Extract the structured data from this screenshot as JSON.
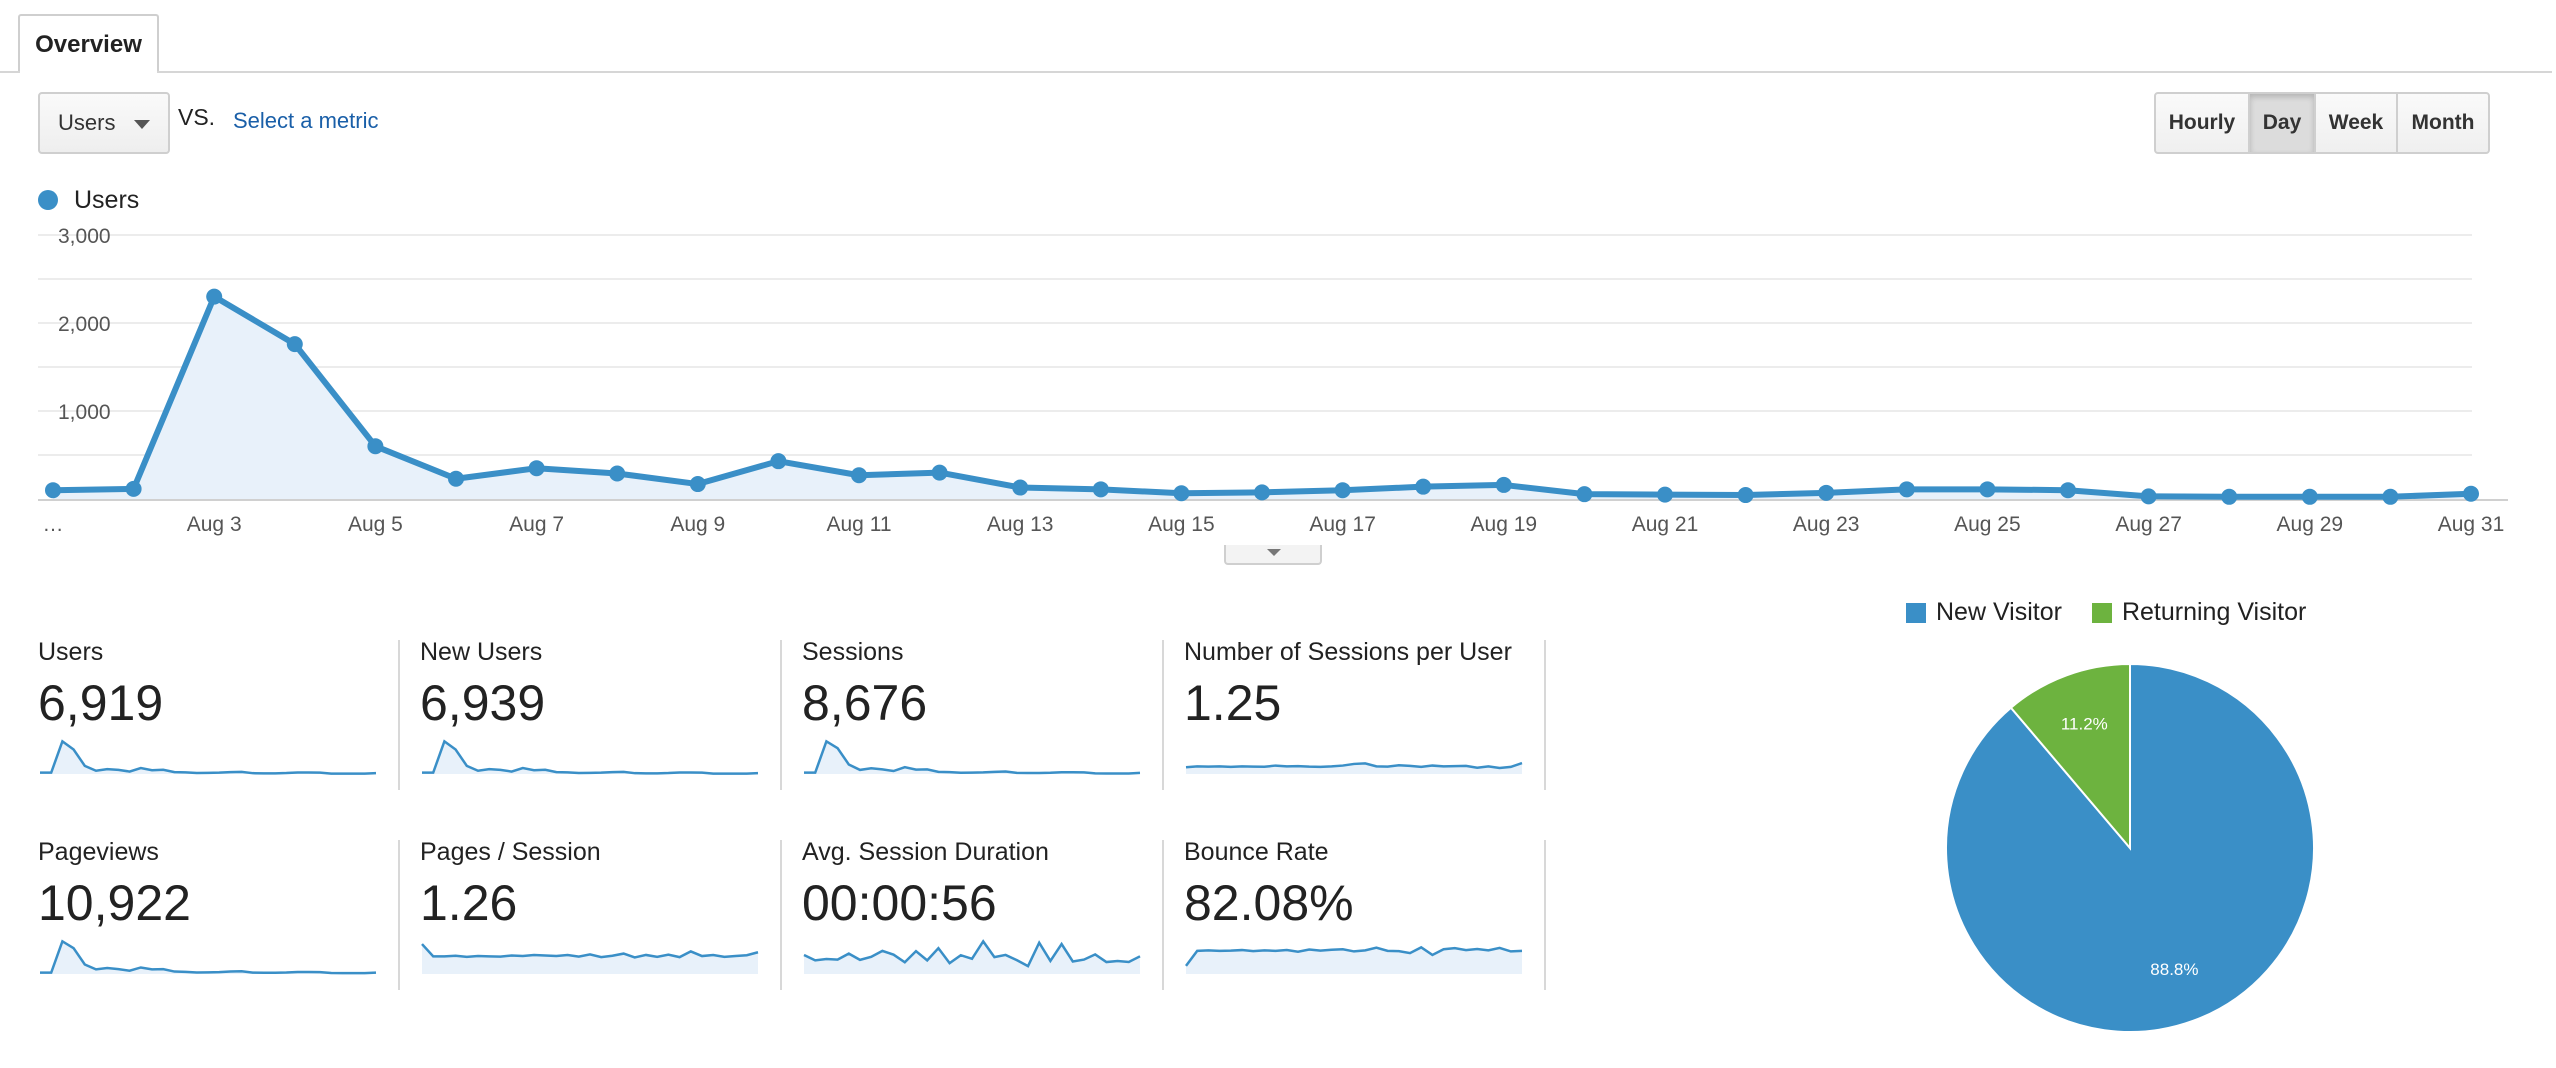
{
  "tabs": {
    "overview": "Overview"
  },
  "controls": {
    "metric": "Users",
    "vs": "VS.",
    "select_metric": "Select a metric",
    "granularity": [
      "Hourly",
      "Day",
      "Week",
      "Month"
    ],
    "active_granularity": "Day"
  },
  "legend": {
    "series": "Users",
    "color": "#3a8fc7"
  },
  "colors": {
    "primary": "#3a8fc7",
    "fill": "#e8f1fa",
    "new": "#3a8fc7",
    "returning": "#6db33f",
    "link": "#1a5fa8"
  },
  "chart_data": [
    {
      "type": "area",
      "x": [
        "…",
        "Aug 2",
        "Aug 3",
        "Aug 4",
        "Aug 5",
        "Aug 6",
        "Aug 7",
        "Aug 8",
        "Aug 9",
        "Aug 10",
        "Aug 11",
        "Aug 12",
        "Aug 13",
        "Aug 14",
        "Aug 15",
        "Aug 16",
        "Aug 17",
        "Aug 18",
        "Aug 19",
        "Aug 20",
        "Aug 21",
        "Aug 22",
        "Aug 23",
        "Aug 24",
        "Aug 25",
        "Aug 26",
        "Aug 27",
        "Aug 28",
        "Aug 29",
        "Aug 30",
        "Aug 31"
      ],
      "x_tick_labels": [
        "…",
        "Aug 3",
        "Aug 5",
        "Aug 7",
        "Aug 9",
        "Aug 11",
        "Aug 13",
        "Aug 15",
        "Aug 17",
        "Aug 19",
        "Aug 21",
        "Aug 23",
        "Aug 25",
        "Aug 27",
        "Aug 29",
        "Aug 31"
      ],
      "series": [
        {
          "name": "Users",
          "values": [
            100,
            115,
            2300,
            1760,
            600,
            230,
            350,
            290,
            170,
            430,
            270,
            300,
            130,
            110,
            65,
            75,
            100,
            140,
            160,
            55,
            50,
            45,
            70,
            110,
            110,
            100,
            30,
            25,
            25,
            25,
            60
          ]
        }
      ],
      "yticks": [
        1000,
        2000,
        3000
      ],
      "ytick_labels": [
        "1,000",
        "2,000",
        "3,000"
      ],
      "ylim": [
        0,
        3000
      ],
      "grid": true
    },
    {
      "type": "pie",
      "labels": [
        "New Visitor",
        "Returning Visitor"
      ],
      "values": [
        88.8,
        11.2
      ],
      "value_labels": [
        "88.8%",
        "11.2%"
      ],
      "legend": "top"
    }
  ],
  "scorecards": [
    {
      "label": "Users",
      "value": "6,919",
      "spark": [
        1,
        1,
        24,
        18,
        6,
        2.4,
        3.6,
        3,
        1.8,
        4.4,
        2.8,
        3.1,
        1.4,
        1.2,
        0.7,
        0.8,
        1,
        1.4,
        1.6,
        0.6,
        0.5,
        0.5,
        0.7,
        1.1,
        1.1,
        1,
        0.3,
        0.3,
        0.3,
        0.3,
        0.6
      ]
    },
    {
      "label": "New Users",
      "value": "6,939",
      "spark": [
        1,
        1,
        24,
        18,
        6,
        2.4,
        3.6,
        3,
        1.8,
        4.4,
        2.8,
        3.1,
        1.4,
        1.2,
        0.7,
        0.8,
        1,
        1.4,
        1.6,
        0.6,
        0.5,
        0.5,
        0.7,
        1.1,
        1.1,
        1,
        0.3,
        0.3,
        0.3,
        0.3,
        0.6
      ]
    },
    {
      "label": "Sessions",
      "value": "8,676",
      "spark": [
        1,
        1,
        24,
        19,
        7,
        3,
        4.2,
        3.4,
        2.2,
        5,
        3.2,
        3.4,
        1.6,
        1.4,
        0.9,
        1,
        1.2,
        1.6,
        1.8,
        0.8,
        0.7,
        0.7,
        0.9,
        1.3,
        1.3,
        1.2,
        0.5,
        0.4,
        0.4,
        0.4,
        0.8
      ]
    },
    {
      "label": "Number of Sessions per User",
      "value": "1.25",
      "spark": [
        5,
        5.6,
        5.4,
        5.6,
        5.2,
        5.6,
        5.4,
        5.3,
        6.2,
        5.6,
        5.8,
        5.4,
        5.2,
        5.6,
        6.2,
        7.4,
        7.8,
        5.6,
        5.4,
        6.4,
        6,
        5.2,
        6.2,
        5.6,
        5.8,
        6,
        4.6,
        5.6,
        4.4,
        5.2,
        8
      ]
    },
    {
      "label": "Pageviews",
      "value": "10,922",
      "spark": [
        1,
        1,
        24,
        19,
        7,
        3.4,
        4.4,
        3.6,
        2.4,
        4.8,
        3.4,
        3.6,
        1.8,
        1.6,
        1.1,
        1.2,
        1.4,
        1.8,
        2,
        1,
        0.9,
        0.9,
        1.1,
        1.5,
        1.5,
        1.4,
        0.7,
        0.6,
        0.6,
        0.6,
        1
      ]
    },
    {
      "label": "Pages / Session",
      "value": "1.26",
      "spark": [
        22,
        13,
        13,
        13.4,
        12.6,
        13.2,
        13,
        12.8,
        13.6,
        13.2,
        14,
        13.6,
        13.2,
        14,
        12.8,
        14.4,
        12.4,
        13.4,
        15,
        12.2,
        14,
        12.6,
        14.2,
        12.4,
        16.6,
        13.2,
        14,
        12.6,
        13.2,
        13.8,
        16
      ]
    },
    {
      "label": "Avg. Session Duration",
      "value": "00:00:56",
      "spark": [
        14,
        10,
        11,
        10.6,
        15,
        10.4,
        12.6,
        17,
        14.2,
        8.6,
        16.8,
        10,
        19,
        8,
        13.8,
        11.2,
        24,
        12.4,
        14,
        10.2,
        5.8,
        23,
        9.6,
        22,
        9.2,
        10.6,
        14.4,
        8.8,
        9.6,
        8.8,
        13
      ]
    },
    {
      "label": "Bounce Rate",
      "value": "82.08%",
      "spark": [
        6,
        17,
        17.4,
        17,
        17.2,
        17.6,
        16.8,
        17.4,
        17,
        17.6,
        16.4,
        18,
        17.2,
        17.8,
        18.2,
        16.6,
        17.4,
        19.4,
        17,
        16.8,
        15.4,
        19.6,
        14,
        18.2,
        19,
        17.6,
        18.4,
        17.4,
        19.2,
        16.6,
        17
      ]
    }
  ]
}
